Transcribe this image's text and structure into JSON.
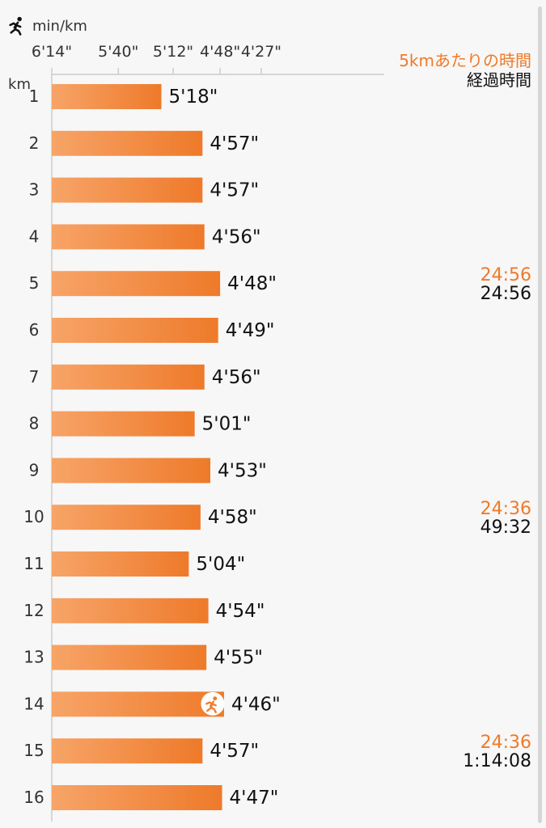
{
  "colors": {
    "bar": "#ee7a2a",
    "bar_light": "#f7a468",
    "accent": "#ee7a2a",
    "text": "#111111",
    "axis": "#cccccc",
    "scrollbar": "#d6d6d6"
  },
  "icons": {
    "axis_icon": "runner-icon",
    "best_split_icon": "runner-icon"
  },
  "chart_data": {
    "type": "bar",
    "orientation": "horizontal",
    "x_unit": "min/km",
    "y_unit": "km",
    "x_ticks": [
      "6'14\"",
      "5'40\"",
      "5'12\"",
      "4'48\"",
      "4'27\""
    ],
    "x_tick_seconds": [
      374,
      340,
      312,
      288,
      267
    ],
    "categories": [
      "1",
      "2",
      "3",
      "4",
      "5",
      "6",
      "7",
      "8",
      "9",
      "10",
      "11",
      "12",
      "13",
      "14",
      "15",
      "16"
    ],
    "values": [
      "5'18\"",
      "4'57\"",
      "4'57\"",
      "4'56\"",
      "4'48\"",
      "4'49\"",
      "4'56\"",
      "5'01\"",
      "4'53\"",
      "4'58\"",
      "5'04\"",
      "4'54\"",
      "4'55\"",
      "4'46\"",
      "4'57\"",
      "4'47\""
    ],
    "values_seconds": [
      318,
      297,
      297,
      296,
      288,
      289,
      296,
      301,
      293,
      298,
      304,
      294,
      295,
      286,
      297,
      287
    ],
    "best_split_km": "14",
    "legend": {
      "split_label": "5kmあたりの時間",
      "elapsed_label": "経過時間"
    },
    "annotations": [
      {
        "km": "5",
        "split": "24:56",
        "elapsed": "24:56"
      },
      {
        "km": "10",
        "split": "24:36",
        "elapsed": "49:32"
      },
      {
        "km": "15",
        "split": "24:36",
        "elapsed": "1:14:08"
      }
    ]
  }
}
